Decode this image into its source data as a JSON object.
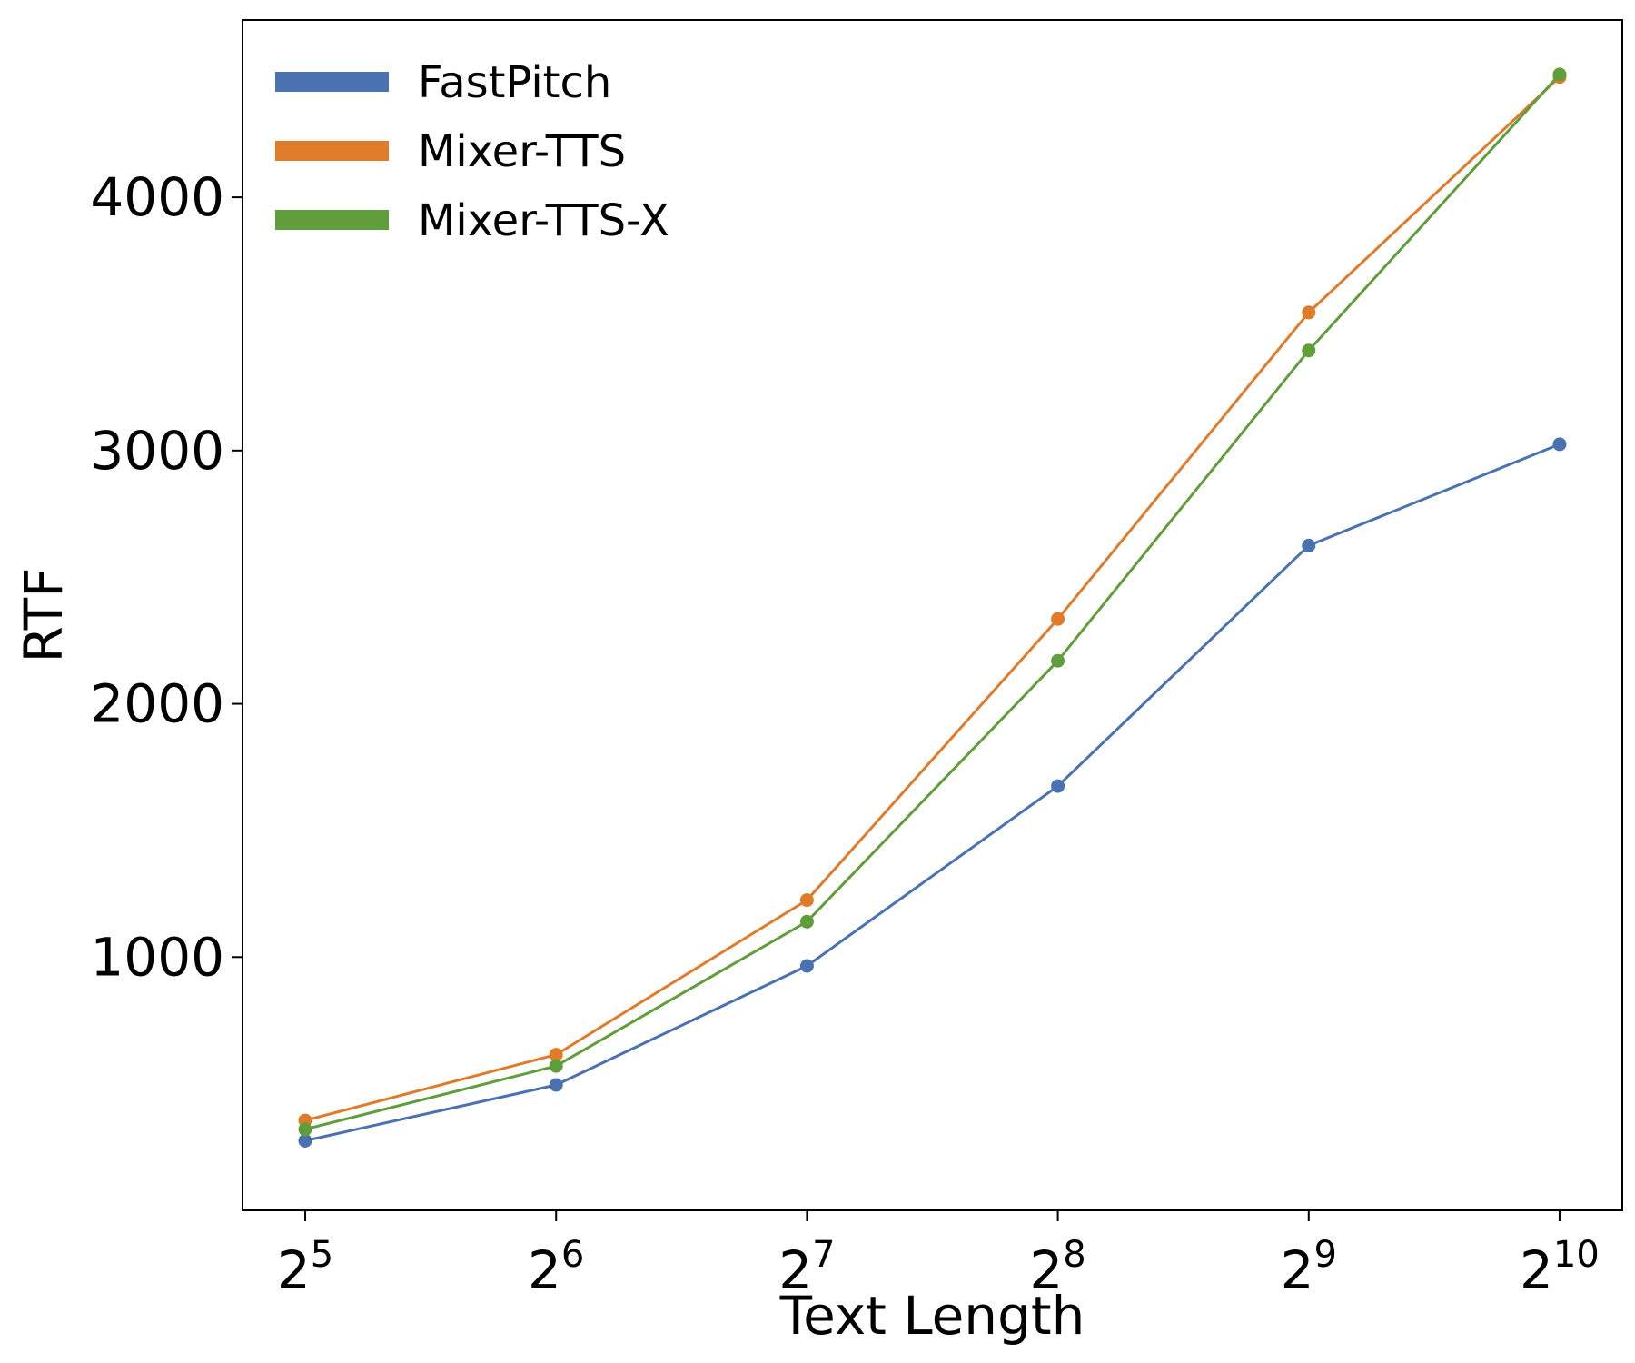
{
  "chart_data": {
    "type": "line",
    "xlabel": "Text Length",
    "ylabel": "RTF",
    "x": [
      5,
      6,
      7,
      8,
      9,
      10
    ],
    "x_tick_base": "2",
    "x_tick_exponents": [
      "5",
      "6",
      "7",
      "8",
      "9",
      "10"
    ],
    "x_scale": "log2",
    "xlim": [
      4.75,
      10.25
    ],
    "ylim": [
      0,
      4700
    ],
    "y_ticks": [
      1000,
      2000,
      3000,
      4000
    ],
    "y_tick_labels": [
      "1000",
      "2000",
      "3000",
      "4000"
    ],
    "grid": false,
    "legend_placement": "top-left",
    "series": [
      {
        "name": "FastPitch",
        "color": "#4a72b0",
        "values": [
          275,
          495,
          965,
          1675,
          2625,
          3025
        ]
      },
      {
        "name": "Mixer-TTS",
        "color": "#e07b29",
        "values": [
          355,
          615,
          1225,
          2335,
          3545,
          4475
        ]
      },
      {
        "name": "Mixer-TTS-X",
        "color": "#5f9e3a",
        "values": [
          320,
          570,
          1140,
          2170,
          3395,
          4485
        ]
      }
    ]
  }
}
